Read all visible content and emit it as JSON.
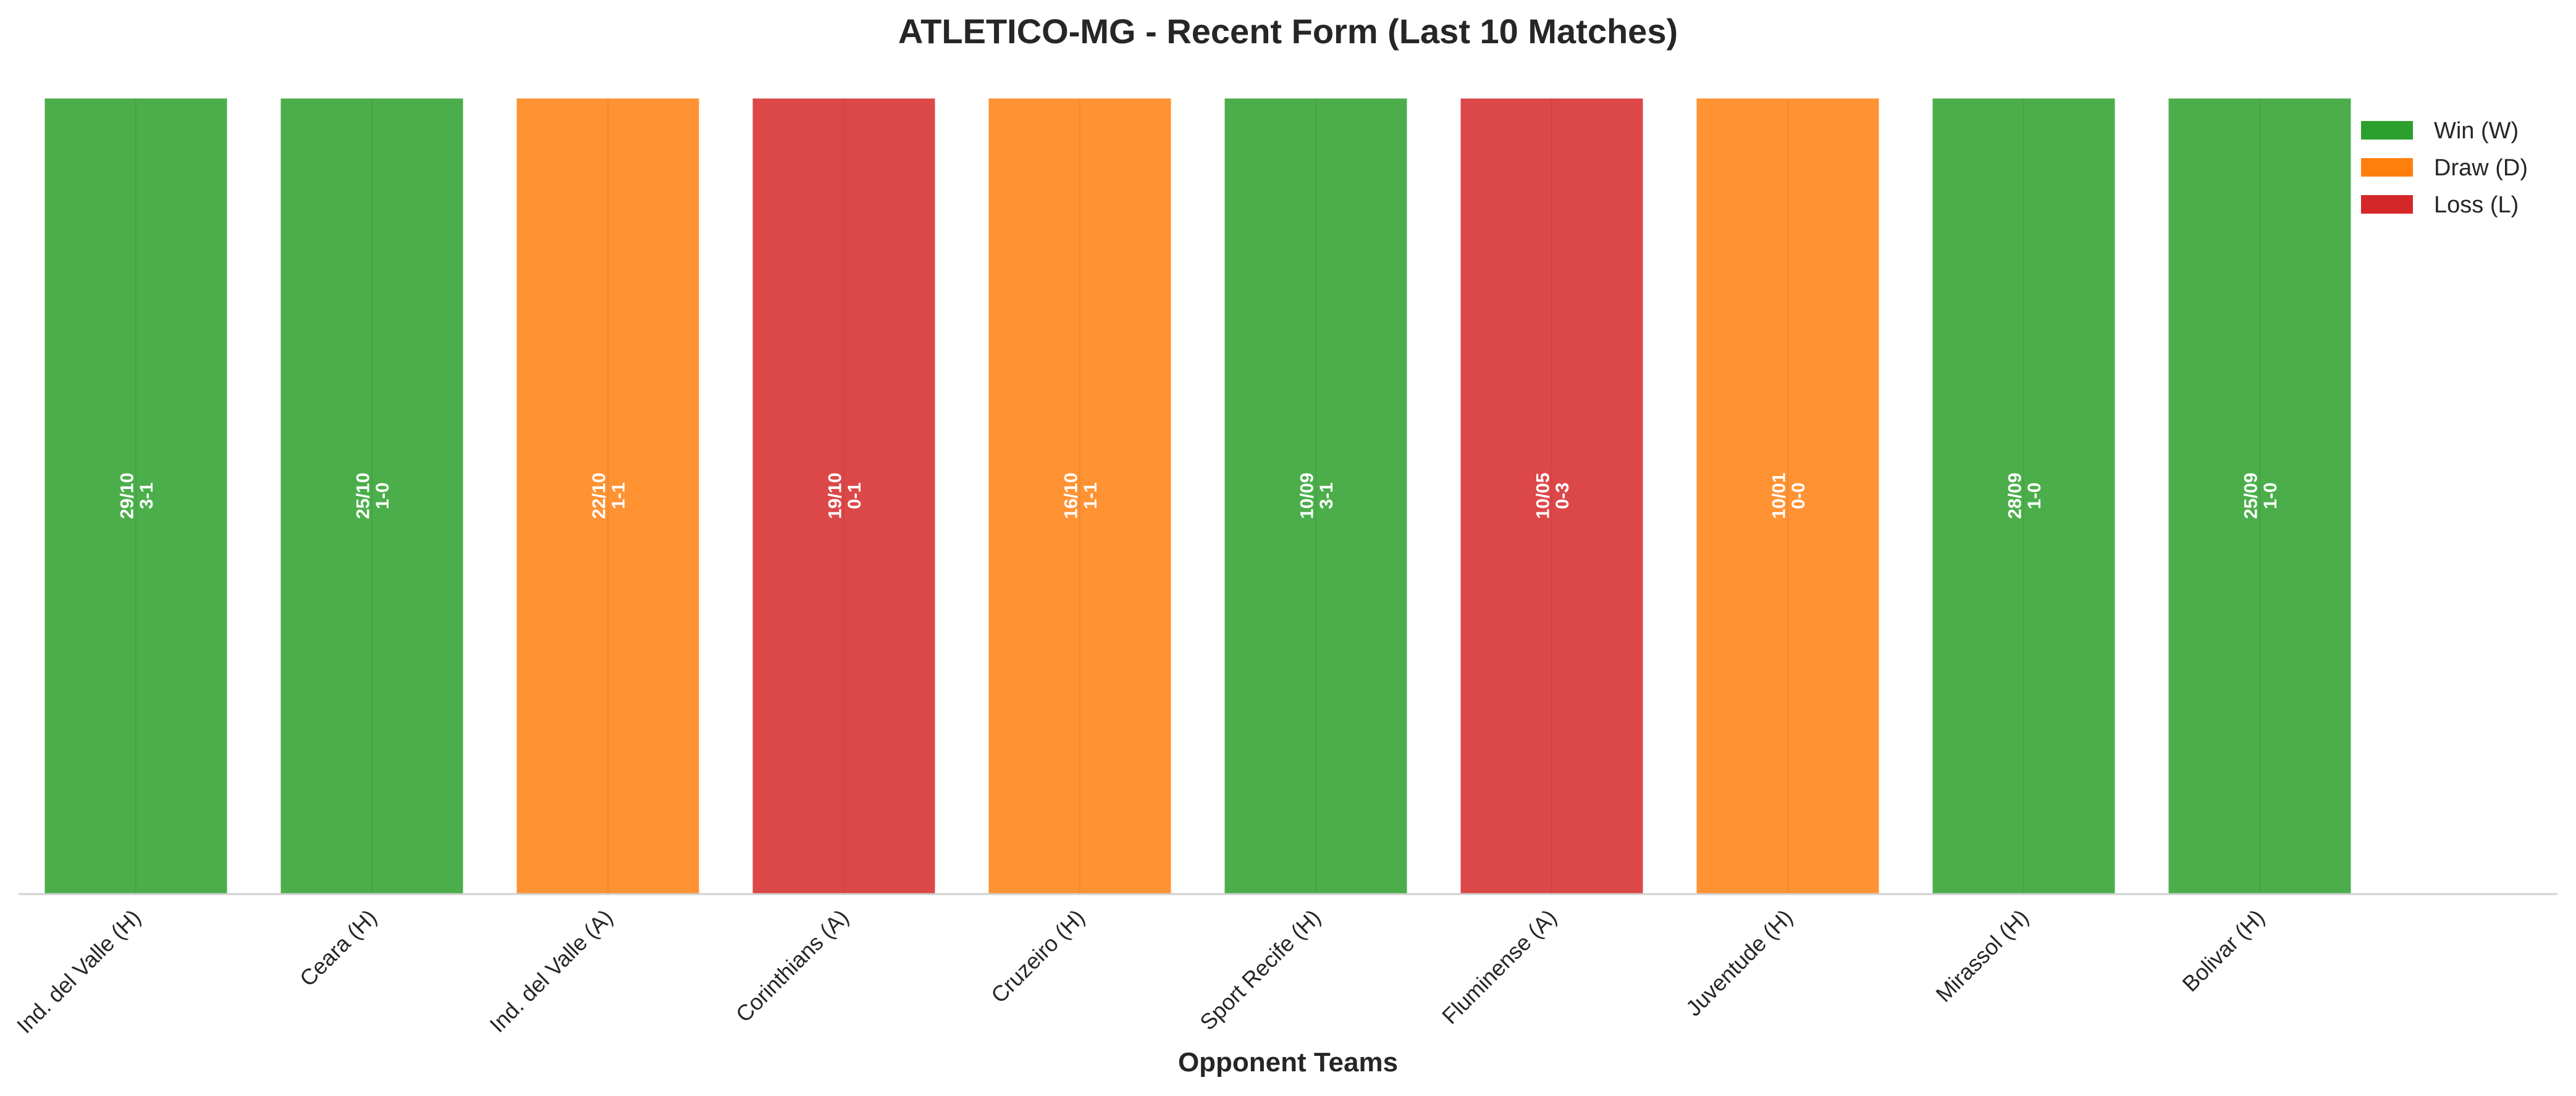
{
  "chart_data": {
    "type": "bar",
    "title": "ATLETICO-MG - Recent Form (Last 10 Matches)",
    "xlabel": "Opponent Teams",
    "ylabel": "",
    "categories": [
      "Ind. del Valle (H)",
      "Ceara (H)",
      "Ind. del Valle (A)",
      "Corinthians (A)",
      "Cruzeiro (H)",
      "Sport Recife (H)",
      "Fluminense (A)",
      "Juventude (H)",
      "Mirassol (H)",
      "Bolivar (H)"
    ],
    "results": [
      "W",
      "W",
      "D",
      "L",
      "D",
      "W",
      "L",
      "D",
      "W",
      "W"
    ],
    "dates": [
      "29/10",
      "25/10",
      "22/10",
      "19/10",
      "16/10",
      "10/09",
      "10/05",
      "10/01",
      "28/09",
      "25/09"
    ],
    "scores": [
      "3-1",
      "1-0",
      "1-1",
      "0-1",
      "1-1",
      "3-1",
      "0-3",
      "0-0",
      "1-0",
      "1-0"
    ],
    "values": [
      1,
      1,
      1,
      1,
      1,
      1,
      1,
      1,
      1,
      1
    ],
    "ylim": [
      0,
      1
    ],
    "grid": false,
    "legend": {
      "placement": "top-right",
      "entries": [
        {
          "key": "W",
          "label": "Win (W)",
          "color": "#2ca02c"
        },
        {
          "key": "D",
          "label": "Draw (D)",
          "color": "#ff7f0e"
        },
        {
          "key": "L",
          "label": "Loss (L)",
          "color": "#d62728"
        }
      ]
    },
    "colors": {
      "W": "#2ca02c",
      "D": "#ff7f0e",
      "L": "#d62728"
    }
  }
}
